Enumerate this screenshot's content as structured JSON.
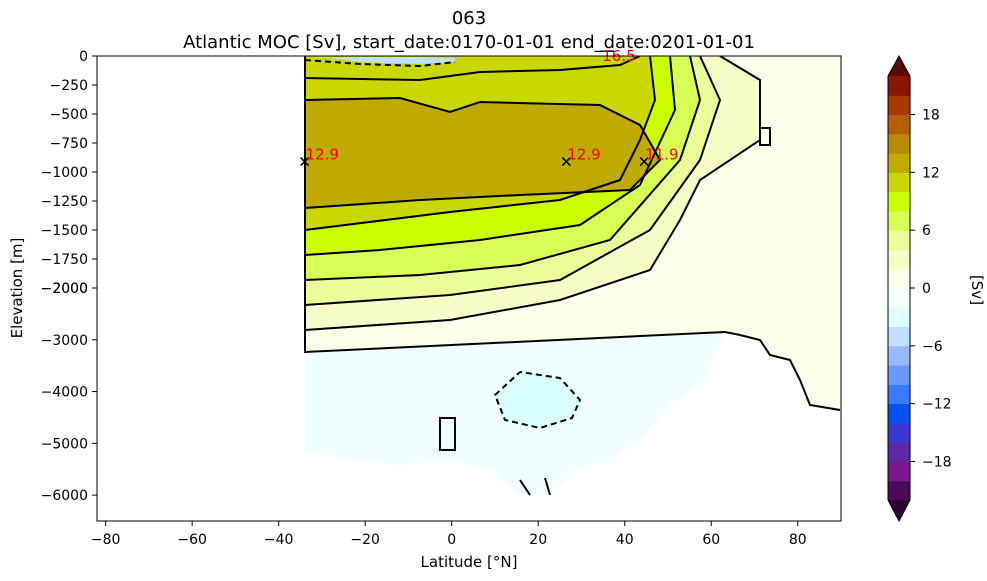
{
  "chart_data": {
    "type": "heatmap",
    "title": "063",
    "subtitle": "Atlantic MOC [Sv], start_date:0170-01-01 end_date:0201-01-01",
    "xlabel": "Latitude [°N]",
    "ylabel": "Elevation [m]",
    "xlim": [
      -82,
      90
    ],
    "ylim": [
      -6500,
      0
    ],
    "y_scale": "piecewise-linear (0 to -2000 stretched, -2000 to -6500 compressed)",
    "x_ticks": [
      -80,
      -60,
      -40,
      -20,
      0,
      20,
      40,
      60,
      80
    ],
    "y_ticks_upper": [
      0,
      -250,
      -500,
      -750,
      -1000,
      -1250,
      -1500,
      -1750,
      -2000
    ],
    "y_ticks_lower": [
      -2000,
      -3000,
      -4000,
      -5000,
      -6000
    ],
    "x_tick_labels": [
      "−80",
      "−60",
      "−40",
      "−20",
      "0",
      "20",
      "40",
      "60",
      "80"
    ],
    "y_tick_labels": [
      "0",
      "−250",
      "−500",
      "−750",
      "−1000",
      "−1250",
      "−1500",
      "−1750",
      "−2000",
      "−2000",
      "−3000",
      "−4000",
      "−5000",
      "−6000"
    ],
    "colorbar": {
      "label": "[Sv]",
      "range": [
        -22,
        22
      ],
      "ticks": [
        -18,
        -12,
        -6,
        0,
        6,
        12,
        18
      ],
      "tick_labels": [
        "−18",
        "−12",
        "−6",
        "0",
        "6",
        "12",
        "18"
      ],
      "extend": "both",
      "colors": [
        "#4a0a5c",
        "#7a1a8a",
        "#5a2aa8",
        "#3a3ad0",
        "#0a50f0",
        "#3a7aff",
        "#6a9aff",
        "#9ab8ff",
        "#bfe0ff",
        "#dffcff",
        "#f2fffe",
        "#fbffe8",
        "#f3ffc6",
        "#e8ff9a",
        "#d8ff55",
        "#ccff00",
        "#c8d800",
        "#bfaa00",
        "#b88a00",
        "#b56000",
        "#a83a00",
        "#8a1500"
      ],
      "under_color": "#2d0535",
      "over_color": "#5a0a0a"
    },
    "annotations": [
      {
        "text": "12.9",
        "lat": -34,
        "depth": -910,
        "marker": "x"
      },
      {
        "text": "12.9",
        "lat": 26.5,
        "depth": -910,
        "marker": "x"
      },
      {
        "text": "11.9",
        "lat": 44.5,
        "depth": -910,
        "marker": "x"
      },
      {
        "text": "16.5",
        "lat": 38.5,
        "depth": -10,
        "marker": "line"
      }
    ]
  }
}
